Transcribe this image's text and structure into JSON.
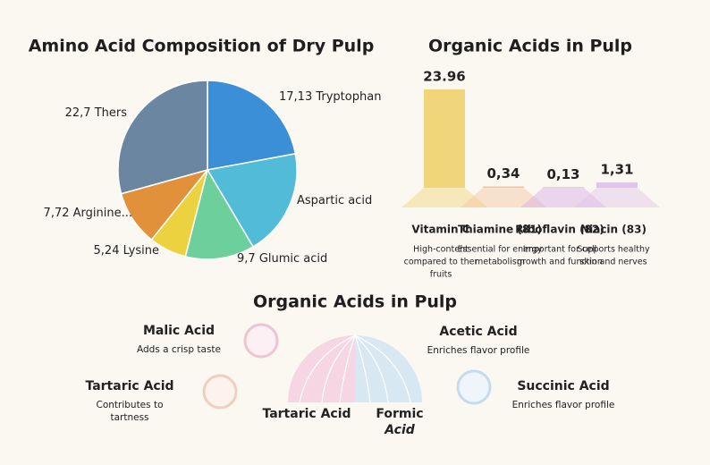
{
  "chart_data": [
    {
      "type": "pie",
      "title": "Amino Acid Composition of Dry Pulp",
      "categories": [
        "Tryptophan",
        "Aspartic acid",
        "Glumic acid",
        "Lysine",
        "Arginine...",
        "Thers"
      ],
      "values": [
        17.13,
        15,
        9.7,
        5.24,
        7.72,
        22.7
      ],
      "value_labels": [
        "17,13",
        null,
        "9,7",
        "5,24",
        "7,72",
        "22,7"
      ],
      "colors": [
        "#3b8fd6",
        "#52bcd8",
        "#6dcf9b",
        "#ecd23e",
        "#e0913a",
        "#6b86a0"
      ]
    },
    {
      "type": "bar",
      "title": "Organic Acids in Pulp",
      "categories": [
        "Vitamin C",
        "Thiamine (81)",
        "Riboflavin (82)",
        "Niacin (83)"
      ],
      "values": [
        23.96,
        0.34,
        0.13,
        1.31
      ],
      "value_labels": [
        "23.96",
        "0,34",
        "0,13",
        "1,31"
      ],
      "colors": [
        "#f1d57a",
        "#f2c6a0",
        "#d7abe6",
        "#dfc4ec"
      ],
      "label_colors": [
        "#c69a1c",
        "#a04a2a",
        "#8a2b7a",
        "#7a3a9a"
      ],
      "descriptions": [
        [
          "High-content",
          "compared to ther",
          "fruits"
        ],
        [
          "Essential for energy",
          "metabolism"
        ],
        [
          "Important for cell",
          "growth and function"
        ],
        [
          "Supports healthy",
          "skin and nerves"
        ]
      ]
    }
  ],
  "acids": {
    "title": "Organic Acids in Pulp",
    "items": [
      {
        "name": "Malic Acid",
        "note": [
          "Adds a crisp taste"
        ],
        "color": "#a8203c"
      },
      {
        "name": "Acetic Acid",
        "note": [
          "Enriches flavor profile"
        ],
        "color": "#2a5cb8"
      },
      {
        "name": "Tartaric Acid",
        "note": [
          "Contributes to",
          "tartness"
        ],
        "color": "#c96a2a"
      },
      {
        "name": "Succinic Acid",
        "note": [
          "Enriches flavor profile"
        ],
        "color": "#2a5cb8"
      }
    ],
    "center": [
      {
        "name": "Tartaric Acid",
        "color": "#c96a2a"
      },
      {
        "name": "Formic",
        "name2": "Acid",
        "color": "#8a1f5a"
      }
    ]
  }
}
